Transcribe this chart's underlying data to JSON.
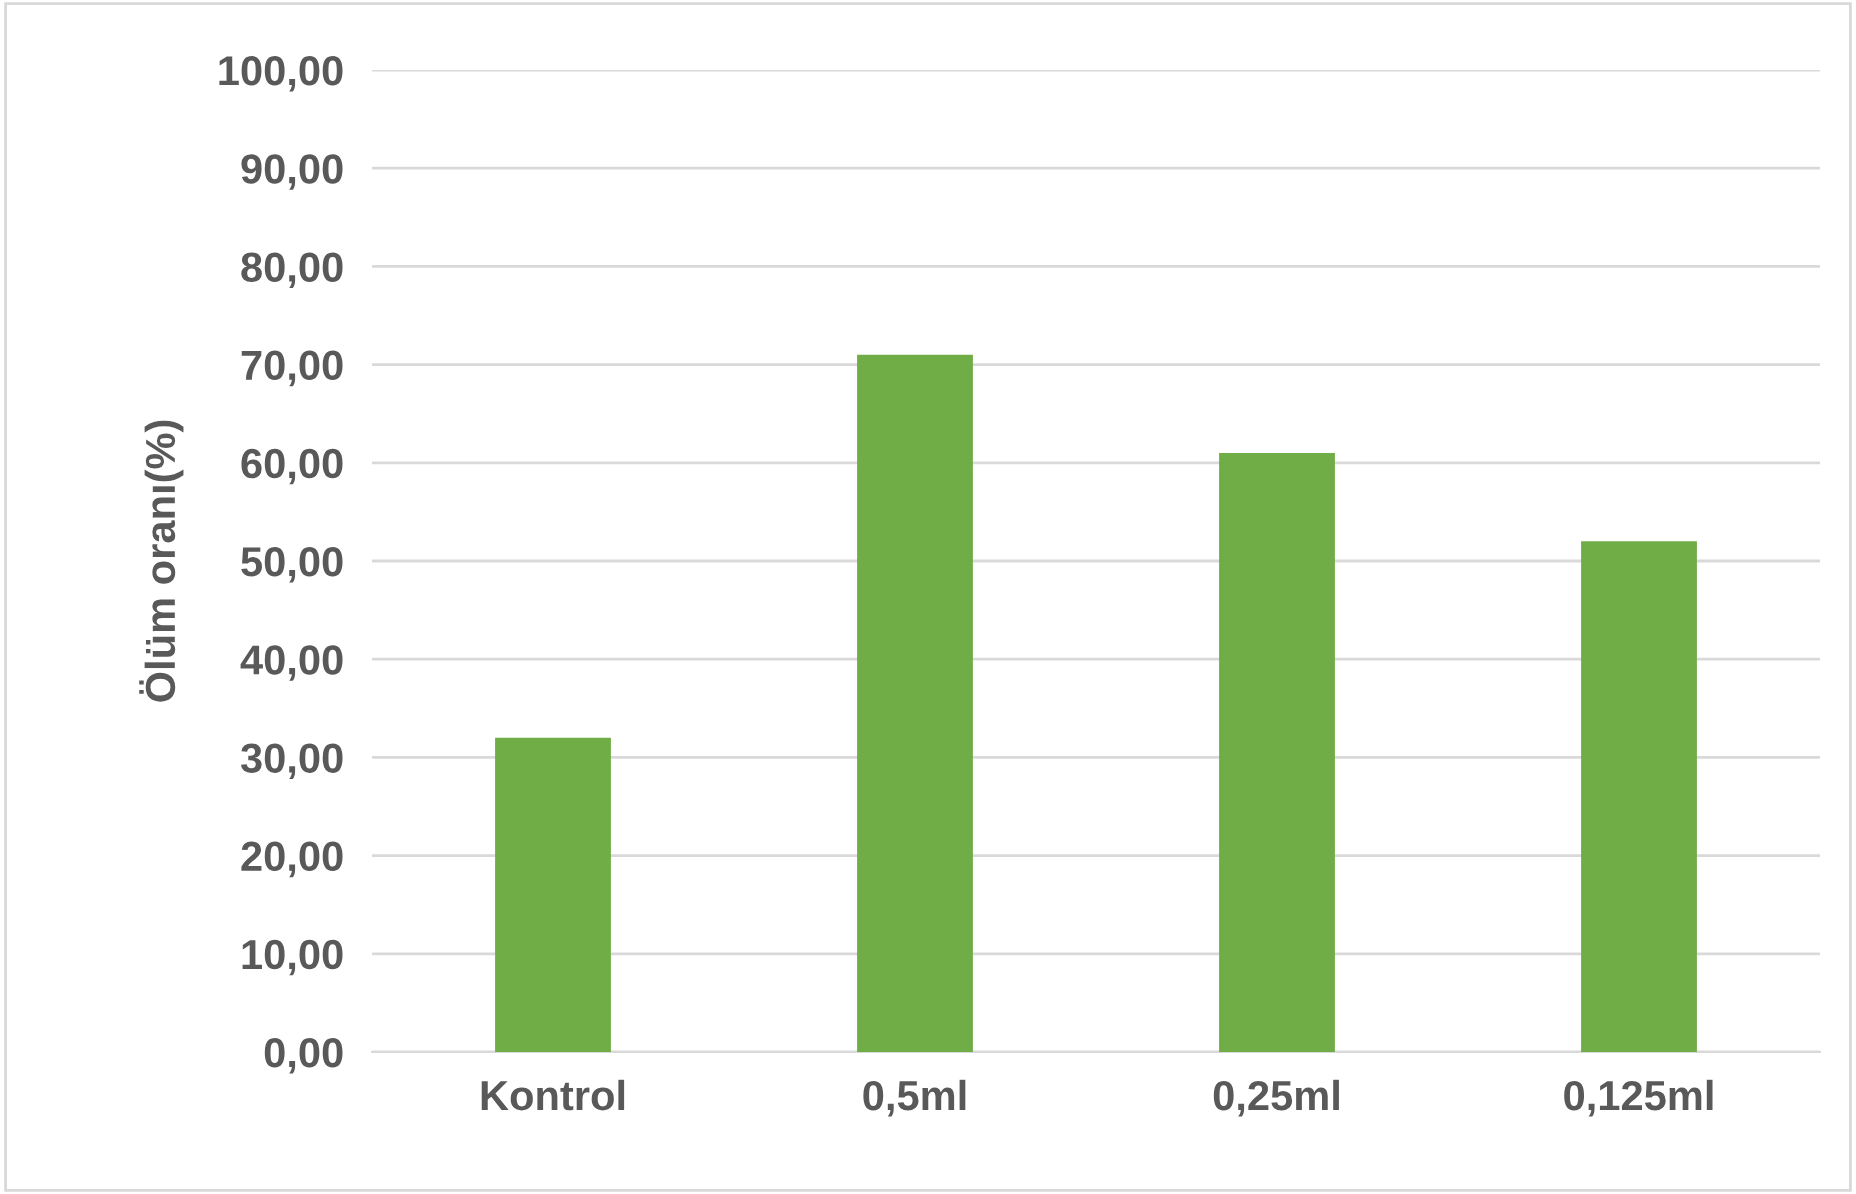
{
  "chart_data": {
    "type": "bar",
    "ylabel": "Ölüm oranı(%)",
    "categories": [
      "Kontrol",
      "0,5ml",
      "0,25ml",
      "0,125ml"
    ],
    "values": [
      32.0,
      71.0,
      61.0,
      52.0
    ],
    "color": "#70ad47",
    "ylim": [
      0,
      100
    ],
    "yticks": [
      {
        "value": 0,
        "label": "0,00"
      },
      {
        "value": 10,
        "label": "10,00"
      },
      {
        "value": 20,
        "label": "20,00"
      },
      {
        "value": 30,
        "label": "30,00"
      },
      {
        "value": 40,
        "label": "40,00"
      },
      {
        "value": 50,
        "label": "50,00"
      },
      {
        "value": 60,
        "label": "60,00"
      },
      {
        "value": 70,
        "label": "70,00"
      },
      {
        "value": 80,
        "label": "80,00"
      },
      {
        "value": 90,
        "label": "90,00"
      },
      {
        "value": 100,
        "label": "100,00"
      }
    ],
    "grid": "y"
  }
}
